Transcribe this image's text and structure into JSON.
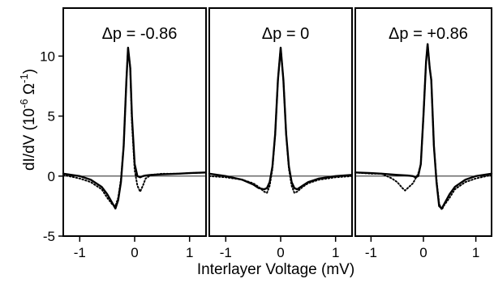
{
  "chart_data": {
    "type": "line",
    "xlabel": "Interlayer Voltage  (mV)",
    "ylabel": "dI/dV  (10^-6 Ω^-1)",
    "ylabel_parts": {
      "main": "dI/dV  (10",
      "exp1": "-6",
      "mid": " Ω",
      "exp2": "-1",
      "end": ")"
    },
    "xlim": [
      -1.3,
      1.3
    ],
    "ylim": [
      -5,
      14
    ],
    "xticks": [
      -1,
      0,
      1
    ],
    "xtick_labels": [
      "-1",
      "0",
      "1"
    ],
    "yticks": [
      -5,
      0,
      5,
      10
    ],
    "ytick_labels": [
      "-5",
      "0",
      "5",
      "10"
    ],
    "panels": [
      {
        "title": "Δp = -0.86",
        "series": [
          {
            "style": "solid",
            "x": [
              -1.3,
              -1.0,
              -0.8,
              -0.6,
              -0.5,
              -0.4,
              -0.35,
              -0.3,
              -0.25,
              -0.2,
              -0.15,
              -0.12,
              -0.08,
              -0.05,
              0.0,
              0.05,
              0.1,
              0.15,
              0.2,
              0.3,
              0.5,
              0.8,
              1.0,
              1.3
            ],
            "y": [
              0.2,
              0.0,
              -0.3,
              -0.9,
              -1.5,
              -2.3,
              -2.7,
              -2.0,
              -0.5,
              2.5,
              8.0,
              10.7,
              9.0,
              5.0,
              1.0,
              0.0,
              -0.1,
              0.0,
              0.05,
              0.1,
              0.15,
              0.2,
              0.25,
              0.3
            ]
          },
          {
            "style": "dotted",
            "x": [
              -1.3,
              -1.0,
              -0.8,
              -0.6,
              -0.5,
              -0.4,
              -0.35,
              -0.3,
              -0.25,
              -0.2,
              -0.15,
              -0.12,
              -0.08,
              -0.05,
              0.0,
              0.05,
              0.1,
              0.15,
              0.2,
              0.3,
              0.5,
              0.8,
              1.0,
              1.3
            ],
            "y": [
              0.1,
              -0.2,
              -0.5,
              -1.1,
              -1.8,
              -2.4,
              -2.5,
              -1.8,
              -0.3,
              2.5,
              8.0,
              10.7,
              9.0,
              4.5,
              0.5,
              -0.8,
              -1.3,
              -0.8,
              -0.2,
              0.1,
              0.2,
              0.2,
              0.25,
              0.3
            ]
          }
        ]
      },
      {
        "title": "Δp = 0",
        "series": [
          {
            "style": "solid",
            "x": [
              -1.3,
              -1.0,
              -0.7,
              -0.5,
              -0.4,
              -0.3,
              -0.25,
              -0.2,
              -0.15,
              -0.1,
              -0.05,
              0.0,
              0.05,
              0.1,
              0.15,
              0.2,
              0.25,
              0.3,
              0.4,
              0.5,
              0.7,
              1.0,
              1.3
            ],
            "y": [
              0.2,
              0.0,
              -0.3,
              -0.7,
              -1.0,
              -1.1,
              -1.0,
              -0.5,
              0.8,
              3.5,
              8.0,
              10.7,
              8.0,
              3.5,
              0.8,
              -0.5,
              -1.0,
              -1.1,
              -0.8,
              -0.5,
              -0.2,
              0.0,
              0.1
            ]
          },
          {
            "style": "dotted",
            "x": [
              -1.3,
              -1.0,
              -0.7,
              -0.5,
              -0.4,
              -0.3,
              -0.25,
              -0.2,
              -0.15,
              -0.1,
              -0.05,
              0.0,
              0.05,
              0.1,
              0.15,
              0.2,
              0.25,
              0.3,
              0.4,
              0.5,
              0.7,
              1.0,
              1.3
            ],
            "y": [
              0.0,
              -0.1,
              -0.3,
              -0.6,
              -0.9,
              -1.3,
              -1.4,
              -0.8,
              0.6,
              3.5,
              8.0,
              10.7,
              8.0,
              3.5,
              0.6,
              -0.8,
              -1.4,
              -1.3,
              -0.9,
              -0.6,
              -0.3,
              -0.1,
              0.0
            ]
          }
        ]
      },
      {
        "title": "Δp = +0.86",
        "series": [
          {
            "style": "solid",
            "x": [
              -1.3,
              -1.0,
              -0.8,
              -0.5,
              -0.3,
              -0.2,
              -0.15,
              -0.1,
              -0.05,
              0.0,
              0.05,
              0.08,
              0.12,
              0.15,
              0.2,
              0.25,
              0.3,
              0.35,
              0.4,
              0.5,
              0.6,
              0.8,
              1.0,
              1.3
            ],
            "y": [
              0.3,
              0.25,
              0.2,
              0.1,
              0.05,
              0.0,
              -0.1,
              0.0,
              1.0,
              5.0,
              9.5,
              11.0,
              9.0,
              8.0,
              2.5,
              -0.5,
              -2.5,
              -2.7,
              -2.3,
              -1.5,
              -0.9,
              -0.3,
              0.0,
              0.2
            ]
          },
          {
            "style": "dotted",
            "x": [
              -1.3,
              -1.0,
              -0.8,
              -0.6,
              -0.5,
              -0.4,
              -0.35,
              -0.3,
              -0.2,
              -0.15,
              -0.1,
              -0.05,
              0.0,
              0.05,
              0.08,
              0.12,
              0.15,
              0.2,
              0.25,
              0.3,
              0.35,
              0.4,
              0.5,
              0.6,
              0.8,
              1.0,
              1.3
            ],
            "y": [
              0.3,
              0.2,
              0.2,
              -0.2,
              -0.5,
              -1.0,
              -1.2,
              -1.0,
              -0.6,
              -0.2,
              0.2,
              1.0,
              5.0,
              9.5,
              11.0,
              9.0,
              8.0,
              2.5,
              -0.3,
              -2.3,
              -2.8,
              -2.4,
              -1.8,
              -1.1,
              -0.5,
              -0.2,
              0.1
            ]
          }
        ]
      }
    ]
  }
}
